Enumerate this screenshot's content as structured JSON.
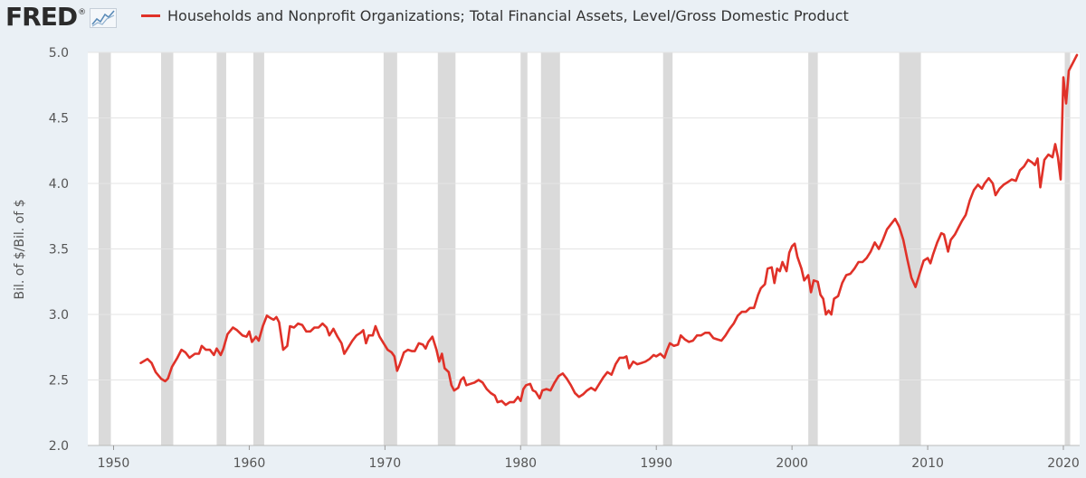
{
  "header": {
    "logo_text": "FRED",
    "logo_mark": "®",
    "logo_icon": "line-chart-icon",
    "legend_label": "Households and Nonprofit Organizations; Total Financial Assets, Level/Gross Domestic Product"
  },
  "colors": {
    "series": "#e03128",
    "recession": "#dadada",
    "background": "#eaf0f5",
    "plot_bg": "#ffffff"
  },
  "chart_data": {
    "type": "line",
    "title": "",
    "ylabel": "Bil. of $/Bil. of $",
    "xlabel": "",
    "xlim": [
      1948.1,
      2021.2
    ],
    "ylim": [
      2.0,
      5.0
    ],
    "x_ticks": [
      1950,
      1960,
      1970,
      1980,
      1990,
      2000,
      2010,
      2020
    ],
    "y_ticks": [
      "2.0",
      "2.5",
      "3.0",
      "3.5",
      "4.0",
      "4.5",
      "5.0"
    ],
    "grid": "horizontal",
    "legend": "top",
    "recessions": [
      [
        1948.9,
        1949.8
      ],
      [
        1953.5,
        1954.4
      ],
      [
        1957.6,
        1958.3
      ],
      [
        1960.3,
        1961.1
      ],
      [
        1969.9,
        1970.9
      ],
      [
        1973.9,
        1975.2
      ],
      [
        1980.0,
        1980.5
      ],
      [
        1981.5,
        1982.9
      ],
      [
        1990.5,
        1991.2
      ],
      [
        2001.2,
        2001.9
      ],
      [
        2007.9,
        2009.5
      ],
      [
        2020.1,
        2020.5
      ]
    ],
    "series": [
      {
        "values": [
          [
            1952.0,
            2.63
          ],
          [
            1952.5,
            2.66
          ],
          [
            1952.8,
            2.63
          ],
          [
            1953.1,
            2.56
          ],
          [
            1953.5,
            2.51
          ],
          [
            1953.8,
            2.49
          ],
          [
            1954.0,
            2.51
          ],
          [
            1954.3,
            2.6
          ],
          [
            1954.7,
            2.67
          ],
          [
            1955.0,
            2.73
          ],
          [
            1955.3,
            2.71
          ],
          [
            1955.6,
            2.67
          ],
          [
            1956.0,
            2.7
          ],
          [
            1956.3,
            2.7
          ],
          [
            1956.5,
            2.76
          ],
          [
            1956.8,
            2.73
          ],
          [
            1957.1,
            2.73
          ],
          [
            1957.4,
            2.69
          ],
          [
            1957.6,
            2.74
          ],
          [
            1957.9,
            2.69
          ],
          [
            1958.1,
            2.74
          ],
          [
            1958.4,
            2.85
          ],
          [
            1958.8,
            2.9
          ],
          [
            1959.1,
            2.88
          ],
          [
            1959.5,
            2.84
          ],
          [
            1959.8,
            2.83
          ],
          [
            1960.0,
            2.87
          ],
          [
            1960.2,
            2.79
          ],
          [
            1960.5,
            2.83
          ],
          [
            1960.7,
            2.8
          ],
          [
            1961.0,
            2.91
          ],
          [
            1961.3,
            2.99
          ],
          [
            1961.6,
            2.97
          ],
          [
            1961.8,
            2.96
          ],
          [
            1962.0,
            2.98
          ],
          [
            1962.2,
            2.94
          ],
          [
            1962.5,
            2.73
          ],
          [
            1962.8,
            2.76
          ],
          [
            1963.0,
            2.91
          ],
          [
            1963.3,
            2.9
          ],
          [
            1963.6,
            2.93
          ],
          [
            1963.9,
            2.92
          ],
          [
            1964.2,
            2.87
          ],
          [
            1964.5,
            2.87
          ],
          [
            1964.8,
            2.9
          ],
          [
            1965.1,
            2.9
          ],
          [
            1965.4,
            2.93
          ],
          [
            1965.7,
            2.9
          ],
          [
            1965.9,
            2.84
          ],
          [
            1966.2,
            2.89
          ],
          [
            1966.5,
            2.83
          ],
          [
            1966.8,
            2.78
          ],
          [
            1967.0,
            2.7
          ],
          [
            1967.3,
            2.75
          ],
          [
            1967.6,
            2.8
          ],
          [
            1967.9,
            2.84
          ],
          [
            1968.2,
            2.86
          ],
          [
            1968.4,
            2.88
          ],
          [
            1968.6,
            2.78
          ],
          [
            1968.8,
            2.84
          ],
          [
            1969.1,
            2.84
          ],
          [
            1969.3,
            2.91
          ],
          [
            1969.6,
            2.83
          ],
          [
            1969.9,
            2.78
          ],
          [
            1970.2,
            2.73
          ],
          [
            1970.5,
            2.71
          ],
          [
            1970.7,
            2.68
          ],
          [
            1970.9,
            2.57
          ],
          [
            1971.1,
            2.62
          ],
          [
            1971.4,
            2.71
          ],
          [
            1971.7,
            2.73
          ],
          [
            1972.0,
            2.72
          ],
          [
            1972.2,
            2.72
          ],
          [
            1972.5,
            2.78
          ],
          [
            1972.8,
            2.77
          ],
          [
            1973.0,
            2.74
          ],
          [
            1973.2,
            2.79
          ],
          [
            1973.5,
            2.83
          ],
          [
            1973.8,
            2.73
          ],
          [
            1974.0,
            2.64
          ],
          [
            1974.2,
            2.7
          ],
          [
            1974.4,
            2.59
          ],
          [
            1974.7,
            2.56
          ],
          [
            1974.9,
            2.46
          ],
          [
            1975.1,
            2.42
          ],
          [
            1975.4,
            2.44
          ],
          [
            1975.6,
            2.5
          ],
          [
            1975.8,
            2.52
          ],
          [
            1976.0,
            2.46
          ],
          [
            1976.3,
            2.47
          ],
          [
            1976.6,
            2.48
          ],
          [
            1976.9,
            2.5
          ],
          [
            1977.2,
            2.48
          ],
          [
            1977.5,
            2.43
          ],
          [
            1977.8,
            2.4
          ],
          [
            1978.1,
            2.38
          ],
          [
            1978.3,
            2.33
          ],
          [
            1978.6,
            2.34
          ],
          [
            1978.9,
            2.31
          ],
          [
            1979.2,
            2.33
          ],
          [
            1979.5,
            2.33
          ],
          [
            1979.8,
            2.37
          ],
          [
            1980.0,
            2.34
          ],
          [
            1980.2,
            2.43
          ],
          [
            1980.4,
            2.46
          ],
          [
            1980.7,
            2.47
          ],
          [
            1980.9,
            2.42
          ],
          [
            1981.1,
            2.41
          ],
          [
            1981.4,
            2.36
          ],
          [
            1981.6,
            2.42
          ],
          [
            1981.9,
            2.43
          ],
          [
            1982.2,
            2.42
          ],
          [
            1982.5,
            2.48
          ],
          [
            1982.8,
            2.53
          ],
          [
            1983.1,
            2.55
          ],
          [
            1983.4,
            2.51
          ],
          [
            1983.7,
            2.46
          ],
          [
            1984.0,
            2.4
          ],
          [
            1984.3,
            2.37
          ],
          [
            1984.6,
            2.39
          ],
          [
            1984.9,
            2.42
          ],
          [
            1985.2,
            2.44
          ],
          [
            1985.5,
            2.42
          ],
          [
            1985.8,
            2.47
          ],
          [
            1986.1,
            2.52
          ],
          [
            1986.4,
            2.56
          ],
          [
            1986.7,
            2.54
          ],
          [
            1987.0,
            2.62
          ],
          [
            1987.3,
            2.67
          ],
          [
            1987.6,
            2.67
          ],
          [
            1987.8,
            2.68
          ],
          [
            1988.0,
            2.59
          ],
          [
            1988.3,
            2.64
          ],
          [
            1988.6,
            2.62
          ],
          [
            1988.9,
            2.63
          ],
          [
            1989.2,
            2.64
          ],
          [
            1989.5,
            2.66
          ],
          [
            1989.8,
            2.69
          ],
          [
            1990.0,
            2.68
          ],
          [
            1990.3,
            2.7
          ],
          [
            1990.6,
            2.67
          ],
          [
            1990.8,
            2.73
          ],
          [
            1991.0,
            2.78
          ],
          [
            1991.3,
            2.76
          ],
          [
            1991.6,
            2.77
          ],
          [
            1991.8,
            2.84
          ],
          [
            1992.1,
            2.81
          ],
          [
            1992.4,
            2.79
          ],
          [
            1992.7,
            2.8
          ],
          [
            1993.0,
            2.84
          ],
          [
            1993.3,
            2.84
          ],
          [
            1993.6,
            2.86
          ],
          [
            1993.9,
            2.86
          ],
          [
            1994.2,
            2.82
          ],
          [
            1994.5,
            2.81
          ],
          [
            1994.8,
            2.8
          ],
          [
            1995.1,
            2.84
          ],
          [
            1995.4,
            2.89
          ],
          [
            1995.7,
            2.93
          ],
          [
            1996.0,
            2.99
          ],
          [
            1996.3,
            3.02
          ],
          [
            1996.6,
            3.02
          ],
          [
            1996.9,
            3.05
          ],
          [
            1997.2,
            3.05
          ],
          [
            1997.5,
            3.15
          ],
          [
            1997.7,
            3.2
          ],
          [
            1998.0,
            3.23
          ],
          [
            1998.2,
            3.35
          ],
          [
            1998.5,
            3.36
          ],
          [
            1998.7,
            3.24
          ],
          [
            1998.9,
            3.35
          ],
          [
            1999.1,
            3.33
          ],
          [
            1999.3,
            3.4
          ],
          [
            1999.6,
            3.33
          ],
          [
            1999.8,
            3.47
          ],
          [
            2000.0,
            3.52
          ],
          [
            2000.2,
            3.54
          ],
          [
            2000.4,
            3.44
          ],
          [
            2000.7,
            3.35
          ],
          [
            2000.9,
            3.26
          ],
          [
            2001.2,
            3.3
          ],
          [
            2001.4,
            3.17
          ],
          [
            2001.6,
            3.26
          ],
          [
            2001.9,
            3.25
          ],
          [
            2002.1,
            3.15
          ],
          [
            2002.3,
            3.12
          ],
          [
            2002.5,
            3.0
          ],
          [
            2002.7,
            3.03
          ],
          [
            2002.9,
            3.0
          ],
          [
            2003.1,
            3.12
          ],
          [
            2003.4,
            3.14
          ],
          [
            2003.7,
            3.24
          ],
          [
            2004.0,
            3.3
          ],
          [
            2004.3,
            3.31
          ],
          [
            2004.6,
            3.35
          ],
          [
            2004.9,
            3.4
          ],
          [
            2005.2,
            3.4
          ],
          [
            2005.5,
            3.43
          ],
          [
            2005.8,
            3.48
          ],
          [
            2006.1,
            3.55
          ],
          [
            2006.4,
            3.5
          ],
          [
            2006.7,
            3.57
          ],
          [
            2007.0,
            3.65
          ],
          [
            2007.3,
            3.69
          ],
          [
            2007.6,
            3.73
          ],
          [
            2007.9,
            3.67
          ],
          [
            2008.2,
            3.57
          ],
          [
            2008.5,
            3.42
          ],
          [
            2008.8,
            3.28
          ],
          [
            2009.1,
            3.21
          ],
          [
            2009.4,
            3.31
          ],
          [
            2009.7,
            3.41
          ],
          [
            2010.0,
            3.43
          ],
          [
            2010.2,
            3.39
          ],
          [
            2010.4,
            3.46
          ],
          [
            2010.7,
            3.55
          ],
          [
            2011.0,
            3.62
          ],
          [
            2011.2,
            3.61
          ],
          [
            2011.5,
            3.48
          ],
          [
            2011.7,
            3.57
          ],
          [
            2012.0,
            3.61
          ],
          [
            2012.3,
            3.67
          ],
          [
            2012.5,
            3.71
          ],
          [
            2012.8,
            3.76
          ],
          [
            2013.1,
            3.87
          ],
          [
            2013.4,
            3.95
          ],
          [
            2013.7,
            3.99
          ],
          [
            2014.0,
            3.96
          ],
          [
            2014.2,
            4.0
          ],
          [
            2014.5,
            4.04
          ],
          [
            2014.8,
            4.0
          ],
          [
            2015.0,
            3.91
          ],
          [
            2015.3,
            3.96
          ],
          [
            2015.6,
            3.99
          ],
          [
            2015.9,
            4.01
          ],
          [
            2016.2,
            4.03
          ],
          [
            2016.5,
            4.02
          ],
          [
            2016.8,
            4.1
          ],
          [
            2017.1,
            4.13
          ],
          [
            2017.4,
            4.18
          ],
          [
            2017.7,
            4.16
          ],
          [
            2017.9,
            4.14
          ],
          [
            2018.1,
            4.19
          ],
          [
            2018.3,
            3.97
          ],
          [
            2018.6,
            4.18
          ],
          [
            2018.9,
            4.22
          ],
          [
            2019.2,
            4.2
          ],
          [
            2019.4,
            4.3
          ],
          [
            2019.6,
            4.2
          ],
          [
            2019.8,
            4.03
          ],
          [
            2020.0,
            4.81
          ],
          [
            2020.2,
            4.61
          ],
          [
            2020.4,
            4.86
          ],
          [
            2020.7,
            4.92
          ],
          [
            2021.0,
            4.98
          ]
        ]
      }
    ]
  }
}
